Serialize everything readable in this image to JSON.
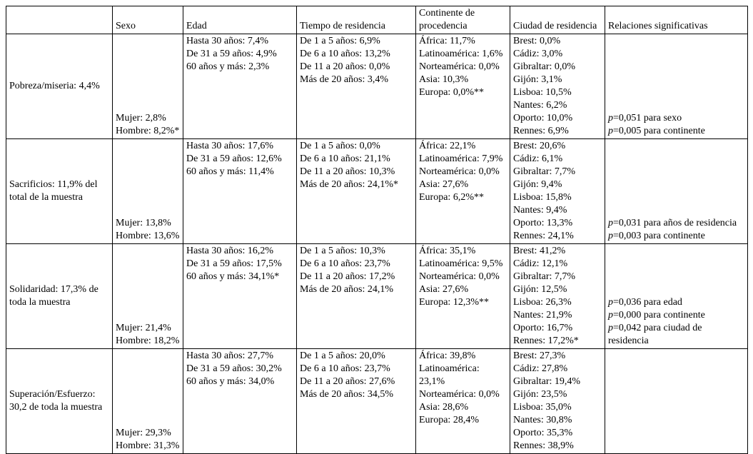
{
  "table": {
    "headers": [
      "",
      "Sexo",
      "Edad",
      "Tiempo de residencia",
      "Continente de procedencia",
      "Ciudad de residencia",
      "Relaciones significativas"
    ],
    "rows": [
      {
        "label": "Pobreza/miseria: 4,4%",
        "sexo": [
          "Mujer: 2,8%",
          "Hombre: 8,2%*"
        ],
        "edad": [
          "Hasta 30 años: 7,4%",
          "De 31 a 59 años: 4,9%",
          "60 años y más: 2,3%"
        ],
        "tiempo": [
          "De 1 a 5 años: 6,9%",
          "De 6 a 10 años: 13,2%",
          "De 11 a 20 años: 0,0%",
          "Más de 20 años: 3,4%"
        ],
        "continente": [
          "África: 11,7%",
          "Latinoamérica: 1,6%",
          "Norteamérica: 0,0%",
          "Asia: 10,3%",
          "Europa: 0,0%**"
        ],
        "ciudad": [
          "Brest: 0,0%",
          "Cádiz: 3,0%",
          "Gibraltar: 0,0%",
          "Gijón: 3,1%",
          "Lisboa: 10,5%",
          "Nantes: 6,2%",
          "Oporto: 10,0%",
          "Rennes: 6,9%"
        ],
        "relaciones": [
          "p=0,051 para sexo",
          "p=0,005 para continente"
        ]
      },
      {
        "label": "Sacrificios: 11,9% del total de la muestra",
        "sexo": [
          "Mujer: 13,8%",
          "Hombre: 13,6%"
        ],
        "edad": [
          "Hasta 30 años: 17,6%",
          "De 31 a 59 años: 12,6%",
          "60 años y más: 11,4%"
        ],
        "tiempo": [
          "De 1 a 5 años: 0,0%",
          "De 6 a 10 años: 21,1%",
          "De 11 a 20 años: 10,3%",
          "Más de 20 años: 24,1%*"
        ],
        "continente": [
          "África: 22,1%",
          "Latinoamérica: 7,9%",
          "Norteamérica: 0,0%",
          "Asia: 27,6%",
          "Europa: 6,2%**"
        ],
        "ciudad": [
          "Brest: 20,6%",
          "Cádiz: 6,1%",
          "Gibraltar: 7,7%",
          "Gijón: 9,4%",
          "Lisboa: 15,8%",
          "Nantes: 9,4%",
          "Oporto: 13,3%",
          "Rennes: 24,1%"
        ],
        "relaciones": [
          "p=0,031 para años de residencia",
          "p=0,003 para continente"
        ]
      },
      {
        "label": "Solidaridad: 17,3% de toda la muestra",
        "sexo": [
          "Mujer: 21,4%",
          "Hombre: 18,2%"
        ],
        "edad": [
          "Hasta 30 años: 16,2%",
          "De 31 a 59 años: 17,5%",
          "60 años y más: 34,1%*"
        ],
        "tiempo": [
          "De 1 a 5 años: 10,3%",
          "De 6 a 10 años: 23,7%",
          "De 11 a 20 años: 17,2%",
          "Más de 20 años: 24,1%"
        ],
        "continente": [
          "África: 35,1%",
          "Latinoamérica: 9,5%",
          "Norteamérica: 0,0%",
          "Asia: 27,6%",
          "Europa: 12,3%**"
        ],
        "ciudad": [
          "Brest: 41,2%",
          "Cádiz: 12,1%",
          "Gibraltar: 7,7%",
          "Gijón: 12,5%",
          "Lisboa: 26,3%",
          "Nantes: 21,9%",
          "Oporto: 16,7%",
          "Rennes: 17,2%*"
        ],
        "relaciones": [
          "p=0,036 para edad",
          "p=0,000 para continente",
          "p=0,042 para ciudad de residencia"
        ]
      },
      {
        "label": "Superación/Esfuerzo: 30,2 de toda la muestra",
        "sexo": [
          "Mujer: 29,3%",
          "Hombre: 31,3%"
        ],
        "edad": [
          "Hasta 30 años: 27,7%",
          "De 31 a 59 años: 30,2%",
          "60 años y más: 34,0%"
        ],
        "tiempo": [
          "De 1 a 5 años: 20,0%",
          "De 6 a 10 años: 23,7%",
          "De 11 a 20 años: 27,6%",
          "Más de 20 años: 34,5%"
        ],
        "continente": [
          "África: 39,8%",
          "Latinoamérica: 23,1%",
          "Norteamérica: 0,0%",
          "Asia: 28,6%",
          "Europa: 28,4%"
        ],
        "ciudad": [
          "Brest: 27,3%",
          "Cádiz: 27,8%",
          "Gibraltar: 19,4%",
          "Gijón: 23,5%",
          "Lisboa: 35,0%",
          "Nantes: 30,8%",
          "Oporto: 35,3%",
          "Rennes: 38,9%"
        ],
        "relaciones": []
      }
    ]
  }
}
